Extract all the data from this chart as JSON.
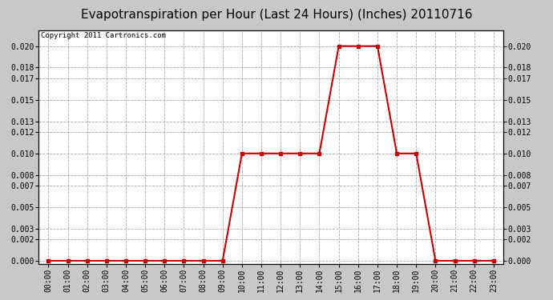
{
  "title": "Evapotranspiration per Hour (Last 24 Hours) (Inches) 20110716",
  "copyright": "Copyright 2011 Cartronics.com",
  "hours": [
    "00:00",
    "01:00",
    "02:00",
    "03:00",
    "04:00",
    "05:00",
    "06:00",
    "07:00",
    "08:00",
    "09:00",
    "10:00",
    "11:00",
    "12:00",
    "13:00",
    "14:00",
    "15:00",
    "16:00",
    "17:00",
    "18:00",
    "19:00",
    "20:00",
    "21:00",
    "22:00",
    "23:00"
  ],
  "values": [
    0.0,
    0.0,
    0.0,
    0.0,
    0.0,
    0.0,
    0.0,
    0.0,
    0.0,
    0.0,
    0.01,
    0.01,
    0.01,
    0.01,
    0.01,
    0.02,
    0.02,
    0.02,
    0.01,
    0.01,
    0.0,
    0.0,
    0.0,
    0.0
  ],
  "line_color": "#cc0000",
  "marker": "s",
  "marker_size": 2.5,
  "background_color": "#c8c8c8",
  "plot_bg_color": "#ffffff",
  "grid_color": "#aaaaaa",
  "yticks": [
    0.0,
    0.002,
    0.003,
    0.005,
    0.007,
    0.008,
    0.01,
    0.012,
    0.013,
    0.015,
    0.017,
    0.018,
    0.02
  ],
  "ylim": [
    -0.0003,
    0.0215
  ],
  "title_fontsize": 11,
  "copyright_fontsize": 6.5,
  "tick_fontsize": 7,
  "linewidth": 1.5
}
